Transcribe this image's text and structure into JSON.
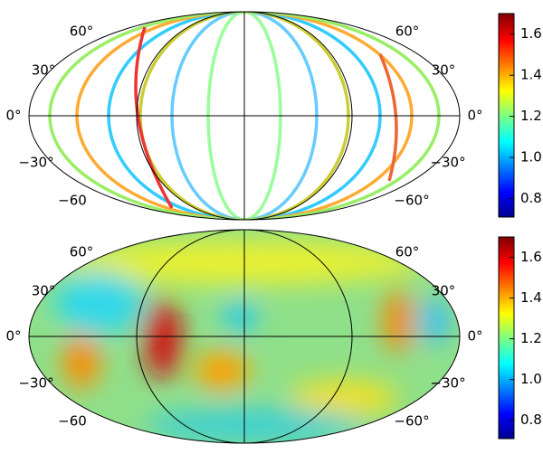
{
  "maps": [
    {
      "lat_labels_left": [
        "60°",
        "30°",
        "0°",
        "−30°",
        "−60"
      ],
      "lat_labels_right": [
        "60°",
        "30°",
        "0°",
        "−30°",
        "−60°"
      ],
      "colorbar": {
        "lim": [
          0.71,
          1.7
        ],
        "ticks": [
          0.8,
          {
            "value": 1,
            "label": "1.0"
          },
          1.2,
          1.4,
          1.6
        ]
      }
    },
    {
      "lat_labels_left": [
        "60°",
        "30°",
        "0°",
        "−30°",
        "−60"
      ],
      "lat_labels_right": [
        "60°",
        "30°",
        "0°",
        "−30°",
        "−60°"
      ],
      "colorbar": {
        "lim": [
          0.71,
          1.7
        ],
        "ticks": [
          0.8,
          {
            "value": 1,
            "label": "1.0"
          },
          1.2,
          1.4,
          1.6
        ]
      }
    }
  ]
}
